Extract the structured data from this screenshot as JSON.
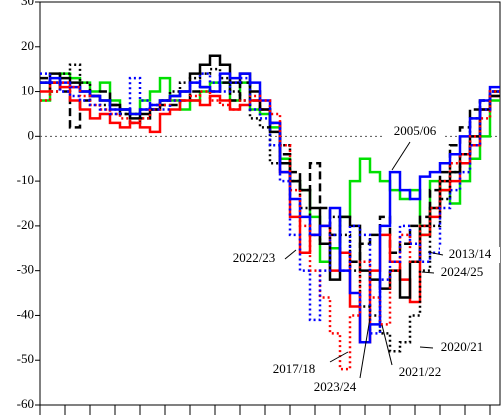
{
  "chart_data": {
    "type": "line",
    "x": [
      0,
      1,
      2,
      3,
      4,
      5,
      6,
      7,
      8,
      9,
      10,
      11,
      12,
      13,
      14,
      15,
      16,
      17,
      18,
      19,
      20,
      21,
      22,
      23,
      24,
      25,
      26,
      27,
      28,
      29,
      30,
      31,
      32,
      33,
      34,
      35,
      36,
      37,
      38,
      39,
      40,
      41,
      42,
      43,
      44,
      45
    ],
    "xlim": [
      0,
      46
    ],
    "xticks": [
      0,
      2.5,
      5,
      7.5,
      10,
      12.5,
      15,
      17.5,
      20,
      22.5,
      25,
      27.5,
      30,
      32.5,
      35,
      37.5,
      40,
      42.5,
      45
    ],
    "ylim": [
      -60,
      30
    ],
    "yticks": [
      30,
      20,
      10,
      0,
      -10,
      -20,
      -30,
      -40,
      -50,
      -60
    ],
    "zero_line": true,
    "series": [
      {
        "name": "2005/06",
        "color": "#00e000",
        "style": "solid",
        "values": [
          8,
          12,
          14,
          13,
          12,
          10,
          12,
          8,
          6,
          5,
          8,
          10,
          13,
          8,
          6,
          8,
          10,
          12,
          12,
          8,
          12,
          6,
          5,
          2,
          -5,
          -10,
          -12,
          -18,
          -28,
          -25,
          -18,
          -10,
          -5,
          -8,
          -10,
          -12,
          -14,
          -12,
          -22,
          -10,
          -12,
          -15,
          -10,
          -5,
          0,
          8
        ]
      },
      {
        "name": "2013/14",
        "color": "#000000",
        "style": "dashed",
        "values": [
          13,
          12,
          10,
          2,
          8,
          9,
          10,
          7,
          5,
          3,
          4,
          6,
          7,
          7,
          8,
          10,
          11,
          10,
          12,
          8,
          12,
          8,
          6,
          3,
          -4,
          -8,
          -12,
          -6,
          -16,
          -22,
          -26,
          -28,
          -24,
          -22,
          -18,
          -26,
          -24,
          -20,
          -18,
          -12,
          -8,
          -2,
          2,
          6,
          8,
          10
        ]
      },
      {
        "name": "2024/25",
        "color": "#ff0000",
        "style": "solid",
        "values": [
          10,
          12,
          11,
          8,
          6,
          4,
          5,
          3,
          2,
          3,
          2,
          1,
          5,
          6,
          8,
          8,
          7,
          9,
          8,
          6,
          7,
          8,
          6,
          3,
          -8,
          -18,
          -26,
          -22,
          -20,
          -30,
          -26,
          -38,
          -46,
          -30,
          -22,
          -28,
          -32,
          -37,
          -22,
          -18,
          -12,
          -10,
          -6,
          -2,
          6,
          9
        ]
      },
      {
        "name": "2020/21",
        "color": "#000000",
        "style": "dotted",
        "values": [
          12,
          10,
          14,
          16,
          12,
          9,
          7,
          6,
          5,
          5,
          6,
          7,
          8,
          10,
          12,
          13,
          14,
          15,
          13,
          10,
          8,
          4,
          2,
          -6,
          -2,
          -10,
          -16,
          -22,
          -24,
          -18,
          -22,
          -30,
          -38,
          -40,
          -44,
          -48,
          -46,
          -40,
          -30,
          -20,
          -14,
          -8,
          -4,
          4,
          8,
          10
        ]
      },
      {
        "name": "2021/22",
        "color": "#000000",
        "style": "solid",
        "values": [
          12,
          14,
          13,
          12,
          10,
          9,
          8,
          7,
          6,
          4,
          5,
          6,
          8,
          9,
          10,
          14,
          16,
          18,
          16,
          12,
          14,
          10,
          6,
          1,
          -6,
          -10,
          -12,
          -16,
          -24,
          -32,
          -18,
          -20,
          -30,
          -32,
          -34,
          -30,
          -36,
          -28,
          -20,
          -16,
          -10,
          -8,
          -4,
          0,
          6,
          9
        ]
      },
      {
        "name": "2023/24",
        "color": "#0000ff",
        "style": "solid",
        "values": [
          12,
          13,
          12,
          11,
          10,
          9,
          8,
          6,
          6,
          5,
          6,
          7,
          8,
          9,
          10,
          12,
          11,
          10,
          14,
          13,
          14,
          12,
          8,
          3,
          -8,
          -14,
          -18,
          -22,
          -20,
          -16,
          -30,
          -35,
          -46,
          -42,
          -20,
          -8,
          -12,
          -14,
          -9,
          -8,
          -6,
          -4,
          0,
          4,
          8,
          11
        ]
      },
      {
        "name": "2017/18",
        "color": "#ff0000",
        "style": "dotted",
        "values": [
          8,
          10,
          12,
          11,
          9,
          7,
          6,
          5,
          4,
          3,
          4,
          6,
          7,
          8,
          8,
          9,
          10,
          8,
          7,
          6,
          8,
          9,
          8,
          5,
          -2,
          -12,
          -20,
          -30,
          -36,
          -44,
          -52,
          -40,
          -28,
          -36,
          -42,
          -30,
          -22,
          -28,
          -20,
          -16,
          -10,
          -6,
          -4,
          0,
          4,
          10
        ]
      },
      {
        "name": "2022/23",
        "color": "#0000ff",
        "style": "dotted",
        "values": [
          14,
          12,
          10,
          9,
          8,
          7,
          6,
          5,
          6,
          13,
          8,
          6,
          6,
          8,
          10,
          12,
          14,
          12,
          10,
          12,
          13,
          6,
          4,
          -2,
          -10,
          -22,
          -30,
          -41,
          -30,
          -22,
          -30,
          -20,
          -22,
          -44,
          -32,
          -28,
          -20,
          -24,
          -28,
          -26,
          -16,
          -12,
          -8,
          -2,
          6,
          10
        ]
      }
    ]
  }
}
